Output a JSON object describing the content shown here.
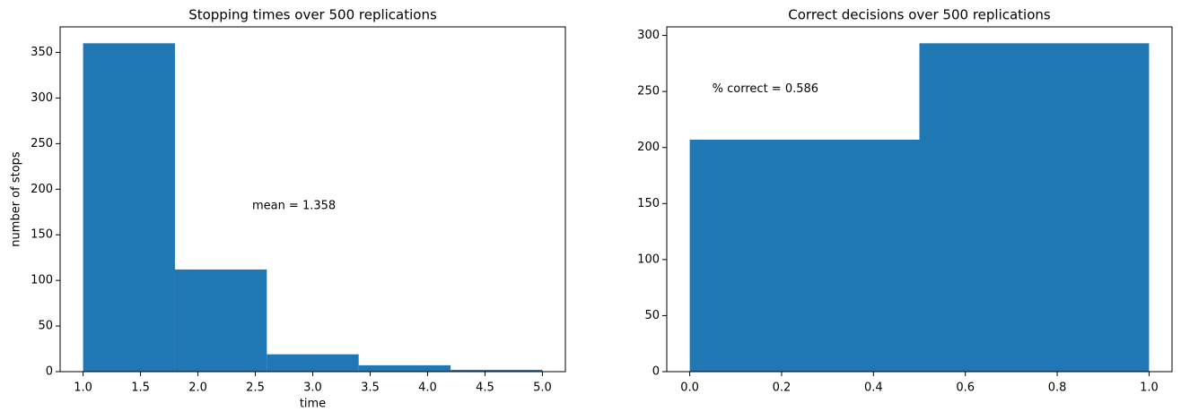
{
  "chart_data": [
    {
      "type": "histogram",
      "title": "Stopping times over 500 replications",
      "xlabel": "time",
      "ylabel": "number of stops",
      "annotation": "mean = 1.358",
      "bins": [
        1.0,
        1.8,
        2.6,
        3.4,
        4.2,
        5.0
      ],
      "values": [
        360,
        112,
        19,
        7,
        2
      ],
      "color": "#1f77b4",
      "xlim": [
        0.8,
        5.2
      ],
      "ylim": [
        0,
        378
      ],
      "xticks": [
        {
          "value": 1,
          "label": "1.0"
        },
        {
          "value": 1.5,
          "label": "1.5"
        },
        {
          "value": 2,
          "label": "2.0"
        },
        {
          "value": 2.5,
          "label": "2.5"
        },
        {
          "value": 3,
          "label": "3.0"
        },
        {
          "value": 3.5,
          "label": "3.5"
        },
        {
          "value": 4,
          "label": "4.0"
        },
        {
          "value": 4.5,
          "label": "4.5"
        },
        {
          "value": 5,
          "label": "5.0"
        }
      ],
      "yticks": [
        0,
        50,
        100,
        150,
        200,
        250,
        300,
        350
      ]
    },
    {
      "type": "histogram",
      "title": "Correct decisions over 500 replications",
      "annotation": "% correct = 0.586",
      "bins": [
        0,
        0.5,
        1
      ],
      "values": [
        207,
        293
      ],
      "color": "#1f77b4",
      "xlim": [
        -0.05,
        1.05
      ],
      "ylim": [
        0,
        307.65
      ],
      "xticks": [
        {
          "value": 0,
          "label": "0.0"
        },
        {
          "value": 0.2,
          "label": "0.2"
        },
        {
          "value": 0.4,
          "label": "0.4"
        },
        {
          "value": 0.6,
          "label": "0.6"
        },
        {
          "value": 0.8,
          "label": "0.8"
        },
        {
          "value": 1,
          "label": "1.0"
        }
      ],
      "yticks": [
        0,
        50,
        100,
        150,
        200,
        250,
        300
      ]
    }
  ]
}
